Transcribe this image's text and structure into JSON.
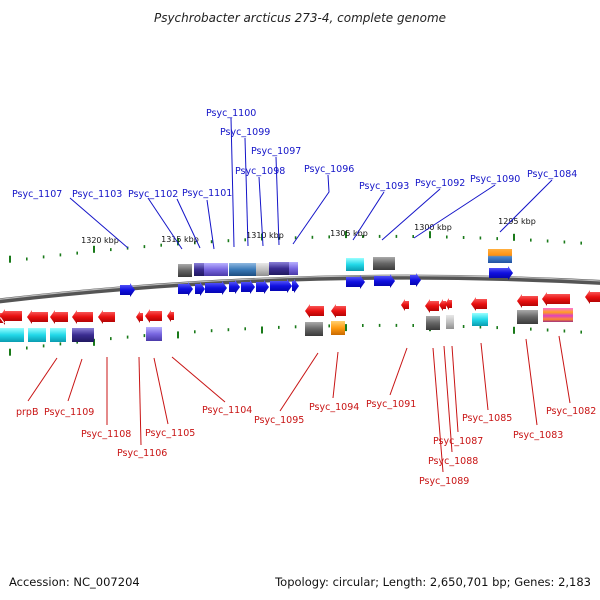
{
  "title": "Psychrobacter arcticus 273-4, complete genome",
  "footer": {
    "accession": "Accession: NC_007204",
    "summary": "Topology: circular; Length: 2,650,701 bp; Genes: 2,183"
  },
  "scale_labels": [
    "1320 kbp",
    "1315 kbp",
    "1310 kbp",
    "1305 kbp",
    "1300 kbp",
    "1295 kbp"
  ],
  "forward_genes": [
    "Psyc_1107",
    "Psyc_1103",
    "Psyc_1102",
    "Psyc_1101",
    "Psyc_1100",
    "Psyc_1099",
    "Psyc_1098",
    "Psyc_1097",
    "Psyc_1096",
    "Psyc_1093",
    "Psyc_1092",
    "Psyc_1090",
    "Psyc_1084"
  ],
  "reverse_genes": [
    "prpB",
    "Psyc_1109",
    "Psyc_1108",
    "Psyc_1106",
    "Psyc_1105",
    "Psyc_1104",
    "Psyc_1095",
    "Psyc_1094",
    "Psyc_1091",
    "Psyc_1089",
    "Psyc_1088",
    "Psyc_1087",
    "Psyc_1085",
    "Psyc_1083",
    "Psyc_1082"
  ],
  "colors": {
    "forward": "#1414e6",
    "reverse": "#e61414",
    "forward_label": "#1414c8",
    "reverse_label": "#c81414",
    "backbone": "#777777",
    "ticks": "#1a7a1a"
  }
}
